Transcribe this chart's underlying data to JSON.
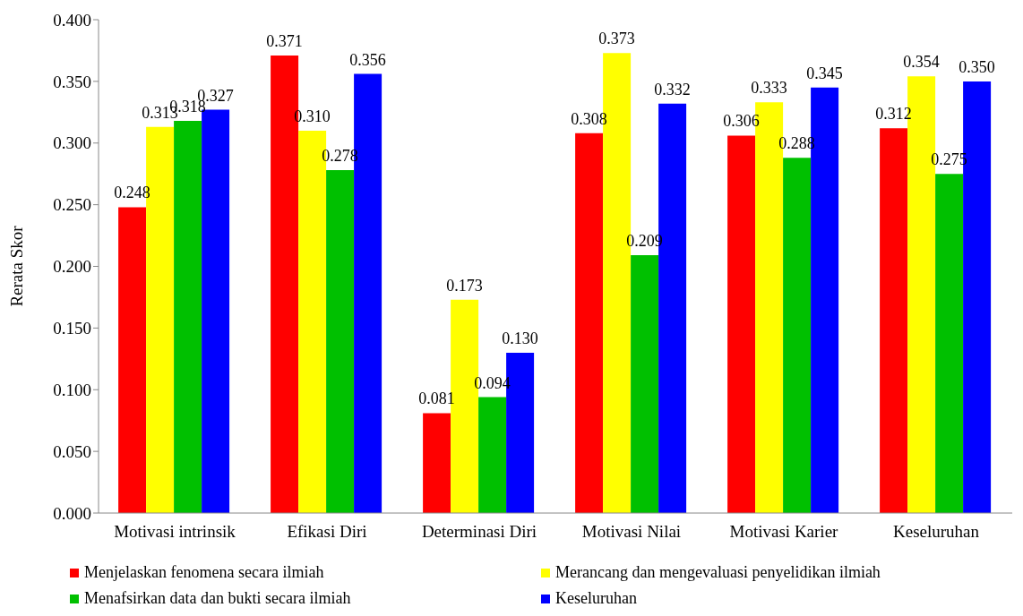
{
  "chart_data": {
    "type": "bar",
    "ylabel": "Rerata Skor",
    "categories": [
      "Motivasi intrinsik",
      "Efikasi Diri",
      "Determinasi Diri",
      "Motivasi Nilai",
      "Motivasi Karier",
      "Keseluruhan"
    ],
    "series": [
      {
        "name": "Menjelaskan fenomena secara ilmiah",
        "color": "#ff0000",
        "values": [
          0.248,
          0.371,
          0.081,
          0.308,
          0.306,
          0.312
        ],
        "value_labels": [
          "0.248",
          "0.371",
          "0.081",
          "0.308",
          "0.306",
          "0.312"
        ]
      },
      {
        "name": "Merancang dan mengevaluasi penyelidikan ilmiah",
        "color": "#ffff00",
        "values": [
          0.313,
          0.31,
          0.173,
          0.373,
          0.333,
          0.354
        ],
        "value_labels": [
          "0.313",
          "0.310",
          "0.173",
          "0.373",
          "0.333",
          "0.354"
        ]
      },
      {
        "name": "Menafsirkan data dan bukti secara ilmiah",
        "color": "#00c000",
        "values": [
          0.318,
          0.278,
          0.094,
          0.209,
          0.288,
          0.275
        ],
        "value_labels": [
          "0.318",
          "0.278",
          "0.094",
          "0.209",
          "0.288",
          "0.275"
        ]
      },
      {
        "name": "Keseluruhan",
        "color": "#0000ff",
        "values": [
          0.327,
          0.356,
          0.13,
          0.332,
          0.345,
          0.35
        ],
        "value_labels": [
          "0.327",
          "0.356",
          "0.130",
          "0.332",
          "0.345",
          "0.350"
        ]
      }
    ],
    "ylim": [
      0,
      0.4
    ],
    "yticks": [
      {
        "value": 0,
        "label": "0.000"
      },
      {
        "value": 0.05,
        "label": "0.050"
      },
      {
        "value": 0.1,
        "label": "0.100"
      },
      {
        "value": 0.15,
        "label": "0.150"
      },
      {
        "value": 0.2,
        "label": "0.200"
      },
      {
        "value": 0.25,
        "label": "0.250"
      },
      {
        "value": 0.3,
        "label": "0.300"
      },
      {
        "value": 0.35,
        "label": "0.350"
      },
      {
        "value": 0.4,
        "label": "0.400"
      }
    ],
    "grid": false,
    "legend": "bottom"
  }
}
